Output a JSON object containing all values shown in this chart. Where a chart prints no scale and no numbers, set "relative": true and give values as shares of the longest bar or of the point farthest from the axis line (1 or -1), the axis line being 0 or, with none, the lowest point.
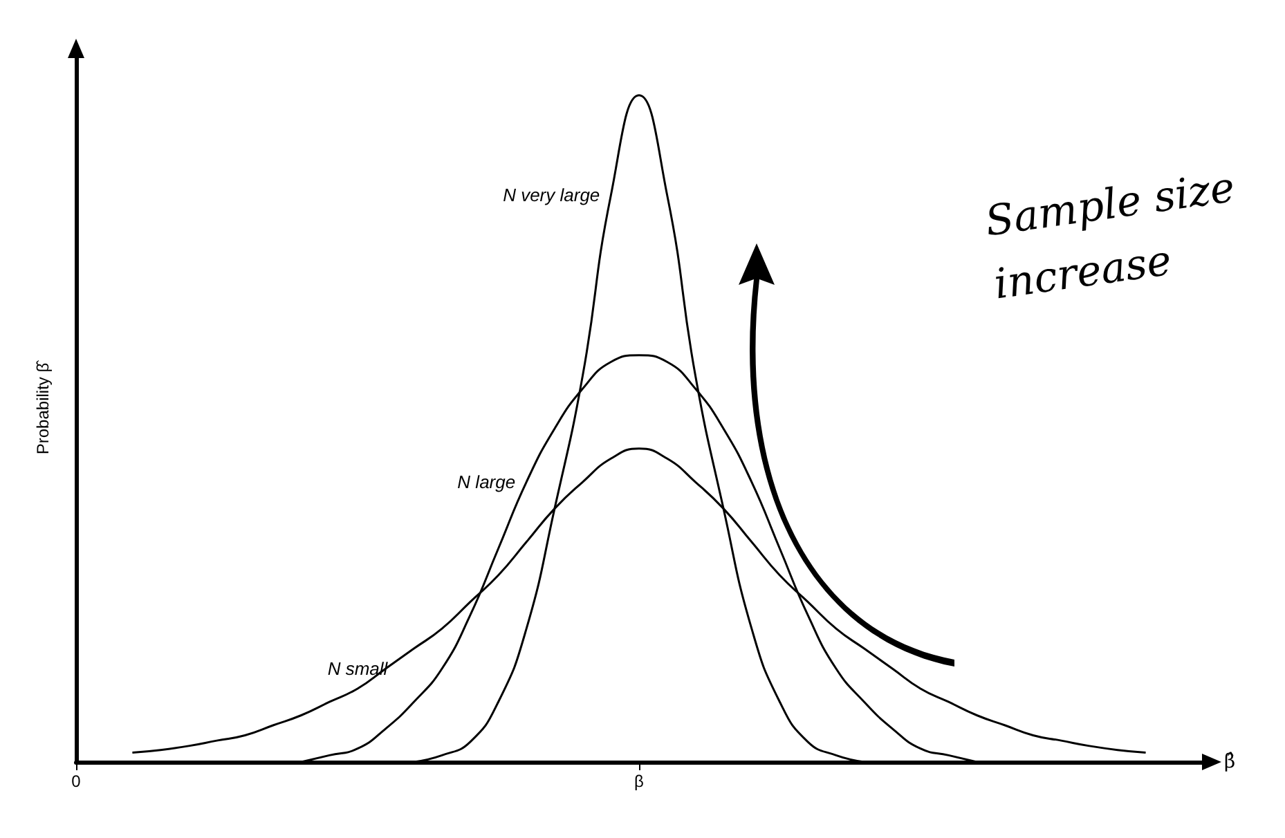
{
  "chart_data": {
    "type": "line",
    "relative": true,
    "xlabel": "β̂",
    "ylabel": "Probability β̂",
    "grid": false,
    "marker": "none",
    "line_style": "solid",
    "categories": [
      "0",
      null,
      null,
      null,
      null,
      null,
      null,
      null,
      null,
      null,
      null,
      null,
      null,
      null,
      null,
      null,
      null,
      null,
      null,
      null,
      "β",
      null,
      null,
      null,
      null,
      null,
      null,
      null,
      null,
      null,
      null,
      null,
      null,
      null,
      null,
      null,
      null,
      null,
      null,
      null,
      null
    ],
    "series": [
      {
        "name": "N very large",
        "color": "#000000",
        "values": [
          null,
          null,
          null,
          null,
          null,
          null,
          null,
          null,
          null,
          null,
          null,
          null,
          0,
          0.01,
          0.03,
          0.09,
          0.2,
          0.38,
          0.58,
          0.85,
          1,
          0.85,
          0.58,
          0.38,
          0.2,
          0.09,
          0.03,
          0.01,
          0,
          null,
          null,
          null,
          null,
          null,
          null,
          null,
          null,
          null,
          null,
          null,
          null
        ]
      },
      {
        "name": "N large",
        "color": "#000000",
        "values": [
          null,
          null,
          null,
          null,
          null,
          null,
          null,
          null,
          0,
          0.01,
          0.02,
          0.05,
          0.09,
          0.14,
          0.22,
          0.32,
          0.42,
          0.5,
          0.56,
          0.6,
          0.61,
          0.6,
          0.56,
          0.5,
          0.42,
          0.32,
          0.22,
          0.14,
          0.09,
          0.05,
          0.02,
          0.01,
          0,
          null,
          null,
          null,
          null,
          null,
          null,
          null,
          null
        ]
      },
      {
        "name": "N small",
        "color": "#000000",
        "values": [
          null,
          null,
          0.014,
          0.018,
          0.024,
          0.032,
          0.04,
          0.055,
          0.07,
          0.09,
          0.11,
          0.14,
          0.17,
          0.2,
          0.24,
          0.28,
          0.33,
          0.38,
          0.42,
          0.455,
          0.47,
          0.455,
          0.42,
          0.38,
          0.33,
          0.28,
          0.24,
          0.2,
          0.17,
          0.14,
          0.11,
          0.09,
          0.07,
          0.055,
          0.04,
          0.032,
          0.024,
          0.018,
          0.014,
          null,
          null
        ]
      }
    ],
    "annotations": [
      "Sample size increase"
    ]
  }
}
